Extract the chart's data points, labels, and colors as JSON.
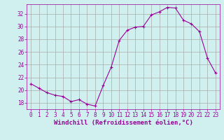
{
  "hours": [
    0,
    1,
    2,
    3,
    4,
    5,
    6,
    7,
    8,
    9,
    10,
    11,
    12,
    13,
    14,
    15,
    16,
    17,
    18,
    19,
    20,
    21,
    22,
    23
  ],
  "values": [
    21.0,
    20.3,
    19.6,
    19.2,
    19.0,
    18.2,
    18.5,
    17.8,
    17.5,
    20.7,
    23.6,
    27.8,
    29.4,
    29.9,
    30.0,
    31.8,
    32.3,
    33.0,
    32.9,
    31.0,
    30.4,
    29.2,
    25.0,
    22.7
  ],
  "line_color": "#990099",
  "marker": "+",
  "marker_size": 3,
  "bg_color": "#cff0ee",
  "grid_color": "#aaaaaa",
  "xlabel": "Windchill (Refroidissement éolien,°C)",
  "xlim": [
    -0.5,
    23.5
  ],
  "ylim": [
    17.0,
    33.5
  ],
  "yticks": [
    18,
    20,
    22,
    24,
    26,
    28,
    30,
    32
  ],
  "xtick_labels": [
    "0",
    "1",
    "2",
    "3",
    "4",
    "5",
    "6",
    "7",
    "8",
    "9",
    "10",
    "11",
    "12",
    "13",
    "14",
    "15",
    "16",
    "17",
    "18",
    "19",
    "20",
    "21",
    "22",
    "23"
  ],
  "font_color": "#990099",
  "tick_fontsize": 5.5,
  "xlabel_fontsize": 6.5
}
